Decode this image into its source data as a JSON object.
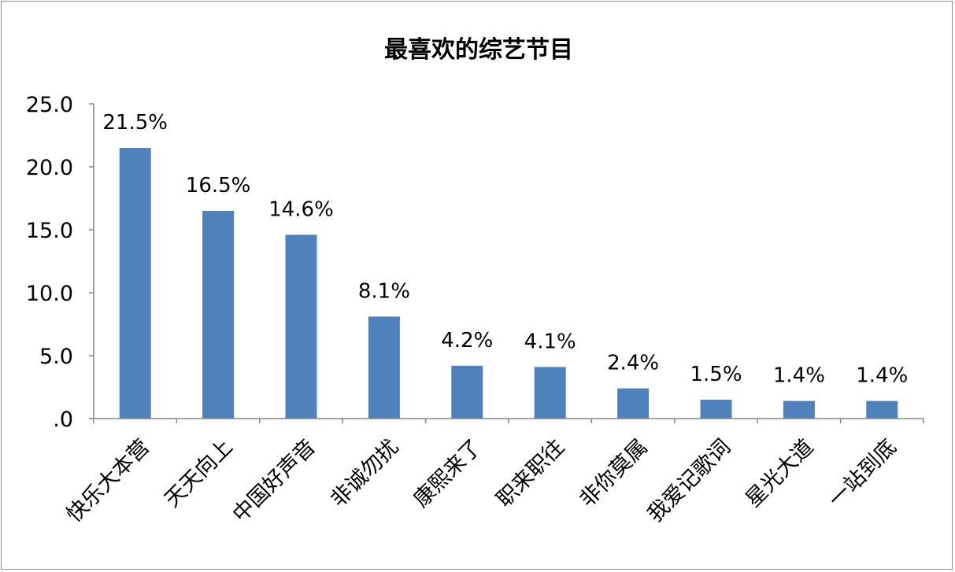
{
  "chart_data": {
    "type": "bar",
    "title": "最喜欢的综艺节目",
    "xlabel": "",
    "ylabel": "",
    "ylim": [
      0,
      25
    ],
    "y_ticks": [
      ".0",
      "5.0",
      "10.0",
      "15.0",
      "20.0",
      "25.0"
    ],
    "grid": false,
    "categories": [
      "快乐大本营",
      "天天向上",
      "中国好声音",
      "非诚勿扰",
      "康熙来了",
      "职来职往",
      "非你莫属",
      "我爱记歌词",
      "星光大道",
      "一站到底"
    ],
    "values": [
      21.5,
      16.5,
      14.6,
      8.1,
      4.2,
      4.1,
      2.4,
      1.5,
      1.4,
      1.4
    ],
    "data_labels": [
      "21.5%",
      "16.5%",
      "14.6%",
      "8.1%",
      "4.2%",
      "4.1%",
      "2.4%",
      "1.5%",
      "1.4%",
      "1.4%"
    ],
    "bar_color": "#4f81bd",
    "axis_color": "#868686"
  }
}
